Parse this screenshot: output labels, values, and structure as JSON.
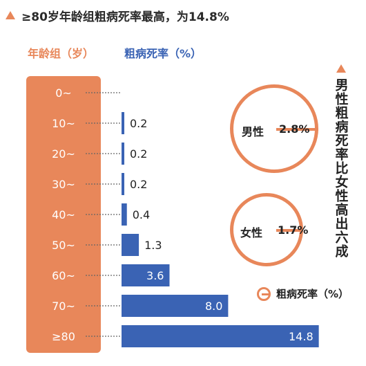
{
  "headline": "≥80岁年龄组粗病死率最高，为14.8%",
  "age_header": "年龄组（岁）",
  "rate_header": "粗病死率（%）",
  "vertical_title": "男性粗病死率比女性高出六成",
  "gender": {
    "male_label": "男性",
    "male_value": "2.8%",
    "female_label": "女性",
    "female_value": "1.7%"
  },
  "legend_label": "粗病死率（%）",
  "colors": {
    "accent": "#E8875A",
    "bar": "#3A63B4"
  },
  "chart_data": {
    "type": "bar",
    "orientation": "horizontal",
    "categories": [
      "0~",
      "10~",
      "20~",
      "30~",
      "40~",
      "50~",
      "60~",
      "70~",
      "≥80"
    ],
    "values": [
      0,
      0.2,
      0.2,
      0.2,
      0.4,
      1.3,
      3.6,
      8.0,
      14.8
    ],
    "value_labels": [
      "",
      "0.2",
      "0.2",
      "0.2",
      "0.4",
      "1.3",
      "3.6",
      "8.0",
      "14.8"
    ],
    "xlabel": "粗病死率（%）",
    "ylabel": "年龄组（岁）"
  }
}
